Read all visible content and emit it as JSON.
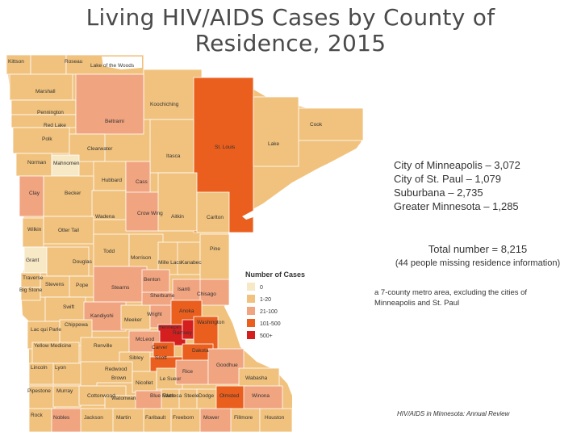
{
  "title": {
    "line1": "Living HIV/AIDS Cases by County of",
    "line2": "Residence, 2015"
  },
  "colors": {
    "c0": "#f7e8c6",
    "c1": "#f1c27d",
    "c2": "#f1a480",
    "c3": "#ea5f1e",
    "c4": "#d51f1f",
    "border": "#ffffff",
    "lake": "#ffffff"
  },
  "legend": {
    "title": "Number of Cases",
    "items": [
      {
        "label": "0",
        "color": "#f7e8c6"
      },
      {
        "label": "1-20",
        "color": "#f1c27d"
      },
      {
        "label": "21-100",
        "color": "#f1a480"
      },
      {
        "label": "101-500",
        "color": "#ea5f1e"
      },
      {
        "label": "500+",
        "color": "#d51f1f"
      }
    ]
  },
  "stats": [
    "City of Minneapolis – 3,072",
    "City of St. Paul – 1,079",
    "Suburbana – 2,735",
    "Greater Minnesota – 1,285"
  ],
  "total": "Total number = 8,215",
  "missing": "(44 people missing residence information)",
  "note": "a 7-county metro area, excluding the cities of Minneapolis and St. Paul",
  "source": "HIV/AIDS in Minnesota: Annual Review",
  "counties": [
    {
      "name": "Kittson",
      "cls": "c1"
    },
    {
      "name": "Roseau",
      "cls": "c1"
    },
    {
      "name": "Lake of the Woods",
      "cls": "c1"
    },
    {
      "name": "Marshall",
      "cls": "c1"
    },
    {
      "name": "Koochiching",
      "cls": "c1"
    },
    {
      "name": "Pennington",
      "cls": "c1"
    },
    {
      "name": "Red Lake",
      "cls": "c1"
    },
    {
      "name": "Beltrami",
      "cls": "c2"
    },
    {
      "name": "Polk",
      "cls": "c1"
    },
    {
      "name": "Clearwater",
      "cls": "c1"
    },
    {
      "name": "Cook",
      "cls": "c1"
    },
    {
      "name": "St. Louis",
      "cls": "c3"
    },
    {
      "name": "Lake",
      "cls": "c1"
    },
    {
      "name": "Itasca",
      "cls": "c1"
    },
    {
      "name": "Norman",
      "cls": "c1"
    },
    {
      "name": "Mahnomen",
      "cls": "c0"
    },
    {
      "name": "Hubbard",
      "cls": "c1"
    },
    {
      "name": "Cass",
      "cls": "c2"
    },
    {
      "name": "Clay",
      "cls": "c2"
    },
    {
      "name": "Becker",
      "cls": "c1"
    },
    {
      "name": "Wadena",
      "cls": "c1"
    },
    {
      "name": "Crow Wing",
      "cls": "c2"
    },
    {
      "name": "Aitkin",
      "cls": "c1"
    },
    {
      "name": "Carlton",
      "cls": "c1"
    },
    {
      "name": "Wilkin",
      "cls": "c1"
    },
    {
      "name": "Otter Tail",
      "cls": "c1"
    },
    {
      "name": "Todd",
      "cls": "c1"
    },
    {
      "name": "Morrison",
      "cls": "c1"
    },
    {
      "name": "Mille Lacs",
      "cls": "c1"
    },
    {
      "name": "Kanabec",
      "cls": "c1"
    },
    {
      "name": "Pine",
      "cls": "c1"
    },
    {
      "name": "Grant",
      "cls": "c0"
    },
    {
      "name": "Douglas",
      "cls": "c1"
    },
    {
      "name": "Traverse",
      "cls": "c1"
    },
    {
      "name": "Big Stone",
      "cls": "c1"
    },
    {
      "name": "Stevens",
      "cls": "c1"
    },
    {
      "name": "Pope",
      "cls": "c1"
    },
    {
      "name": "Stearns",
      "cls": "c2"
    },
    {
      "name": "Benton",
      "cls": "c2"
    },
    {
      "name": "Sherburne",
      "cls": "c2"
    },
    {
      "name": "Isanti",
      "cls": "c2"
    },
    {
      "name": "Chisago",
      "cls": "c2"
    },
    {
      "name": "Swift",
      "cls": "c1"
    },
    {
      "name": "Kandiyohi",
      "cls": "c2"
    },
    {
      "name": "Meeker",
      "cls": "c1"
    },
    {
      "name": "Wright",
      "cls": "c2"
    },
    {
      "name": "Anoka",
      "cls": "c3"
    },
    {
      "name": "Hennepin",
      "cls": "c4"
    },
    {
      "name": "Ramsey",
      "cls": "c4"
    },
    {
      "name": "Washington",
      "cls": "c3"
    },
    {
      "name": "Lac qui Parle",
      "cls": "c1"
    },
    {
      "name": "Chippewa",
      "cls": "c1"
    },
    {
      "name": "Yellow Medicine",
      "cls": "c1"
    },
    {
      "name": "Renville",
      "cls": "c1"
    },
    {
      "name": "McLeod",
      "cls": "c2"
    },
    {
      "name": "Carver",
      "cls": "c3"
    },
    {
      "name": "Scott",
      "cls": "c3"
    },
    {
      "name": "Dakota",
      "cls": "c3"
    },
    {
      "name": "Sibley",
      "cls": "c1"
    },
    {
      "name": "Lincoln",
      "cls": "c1"
    },
    {
      "name": "Lyon",
      "cls": "c1"
    },
    {
      "name": "Redwood",
      "cls": "c1"
    },
    {
      "name": "Brown",
      "cls": "c1"
    },
    {
      "name": "Nicollet",
      "cls": "c1"
    },
    {
      "name": "Le Sueur",
      "cls": "c1"
    },
    {
      "name": "Rice",
      "cls": "c2"
    },
    {
      "name": "Goodhue",
      "cls": "c2"
    },
    {
      "name": "Wabasha",
      "cls": "c1"
    },
    {
      "name": "Pipestone",
      "cls": "c1"
    },
    {
      "name": "Murray",
      "cls": "c1"
    },
    {
      "name": "Cottonwood",
      "cls": "c1"
    },
    {
      "name": "Watonwan",
      "cls": "c1"
    },
    {
      "name": "Blue Earth",
      "cls": "c2"
    },
    {
      "name": "Waseca",
      "cls": "c1"
    },
    {
      "name": "Steele",
      "cls": "c1"
    },
    {
      "name": "Dodge",
      "cls": "c1"
    },
    {
      "name": "Olmsted",
      "cls": "c3"
    },
    {
      "name": "Winona",
      "cls": "c2"
    },
    {
      "name": "Rock",
      "cls": "c1"
    },
    {
      "name": "Nobles",
      "cls": "c2"
    },
    {
      "name": "Jackson",
      "cls": "c1"
    },
    {
      "name": "Martin",
      "cls": "c1"
    },
    {
      "name": "Faribault",
      "cls": "c1"
    },
    {
      "name": "Freeborn",
      "cls": "c1"
    },
    {
      "name": "Mower",
      "cls": "c2"
    },
    {
      "name": "Fillmore",
      "cls": "c1"
    },
    {
      "name": "Houston",
      "cls": "c1"
    }
  ]
}
